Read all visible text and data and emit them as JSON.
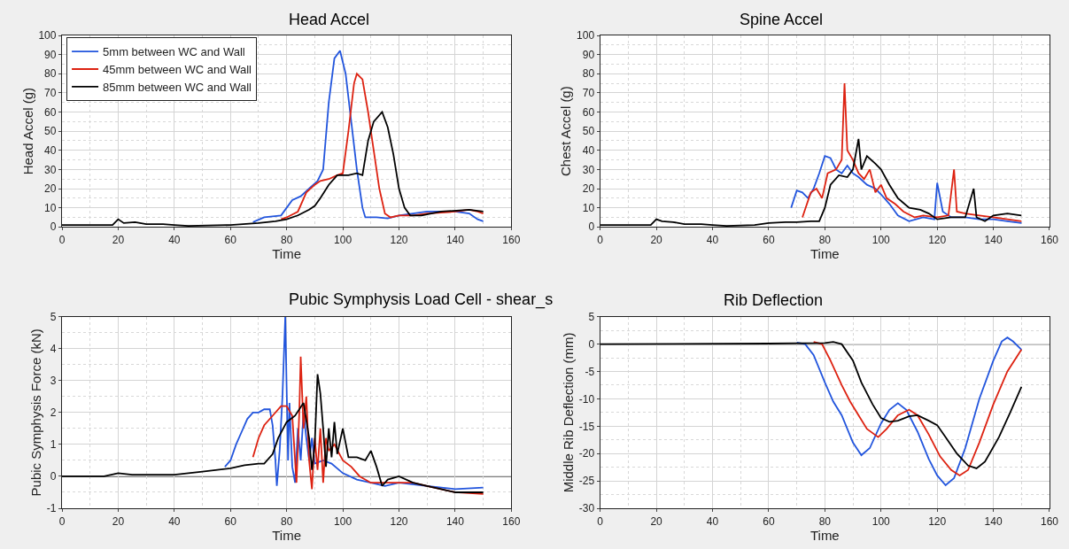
{
  "chart_data": [
    {
      "type": "line",
      "title": "Head Accel",
      "xlabel": "Time",
      "ylabel": "Head Accel (g)",
      "xlim": [
        0,
        160
      ],
      "xticks": [
        0,
        20,
        40,
        60,
        80,
        100,
        120,
        140,
        160
      ],
      "ylim": [
        0,
        100
      ],
      "yticks": [
        0,
        10,
        20,
        30,
        40,
        50,
        60,
        70,
        80,
        90,
        100
      ],
      "grid": true,
      "legend": "top left",
      "marker": "none",
      "line_style": "solid",
      "series": [
        {
          "name": "5mm between WC and Wall",
          "color": "#2255dd",
          "x": [
            68,
            72,
            78,
            80,
            82,
            85,
            88,
            91,
            93,
            95,
            97,
            99,
            101,
            103,
            105,
            107,
            108,
            112,
            116,
            120,
            130,
            140,
            145,
            148,
            150
          ],
          "values": [
            2.5,
            5,
            6,
            10,
            14,
            16,
            20,
            24,
            30,
            65,
            88,
            92,
            80,
            55,
            30,
            10,
            5,
            5,
            4.5,
            6,
            8,
            8,
            7,
            4,
            3
          ]
        },
        {
          "name": "45mm between WC and Wall",
          "color": "#dd2211",
          "x": [
            78,
            80,
            84,
            87,
            90,
            92,
            95,
            98,
            100,
            102,
            104,
            105,
            107,
            109,
            111,
            113,
            115,
            117,
            120,
            125,
            130,
            140,
            145,
            148,
            150
          ],
          "values": [
            4,
            5,
            8,
            18,
            22,
            24,
            25,
            27,
            28,
            50,
            75,
            80,
            77,
            60,
            40,
            20,
            7,
            5,
            6,
            6,
            7,
            8,
            9,
            8,
            7
          ]
        },
        {
          "name": "85mm between WC and Wall",
          "color": "#000000",
          "x": [
            0,
            18,
            20,
            22,
            26,
            30,
            36,
            40,
            45,
            60,
            70,
            76,
            80,
            84,
            88,
            90,
            92,
            95,
            98,
            102,
            105,
            107,
            109,
            111,
            114,
            116,
            118,
            120,
            122,
            124,
            128,
            135,
            145,
            150
          ],
          "values": [
            1,
            1,
            4,
            2,
            2.5,
            1.5,
            1.5,
            1,
            0.5,
            1,
            2,
            3,
            4,
            6,
            9,
            11,
            15,
            22,
            27,
            27,
            28,
            27,
            45,
            55,
            60,
            52,
            38,
            20,
            10,
            6,
            6,
            8,
            9,
            8
          ]
        }
      ]
    },
    {
      "type": "line",
      "title": "Spine Accel",
      "xlabel": "Time",
      "ylabel": "Chest Accel (g)",
      "xlim": [
        0,
        160
      ],
      "xticks": [
        0,
        20,
        40,
        60,
        80,
        100,
        120,
        140,
        160
      ],
      "ylim": [
        0,
        100
      ],
      "yticks": [
        0,
        10,
        20,
        30,
        40,
        50,
        60,
        70,
        80,
        90,
        100
      ],
      "grid": true,
      "marker": "none",
      "line_style": "solid",
      "series": [
        {
          "color": "#2255dd",
          "x": [
            68,
            70,
            72,
            74,
            76,
            78,
            80,
            82,
            84,
            86,
            88,
            90,
            92,
            95,
            98,
            100,
            103,
            106,
            110,
            115,
            119,
            120,
            122,
            125,
            130,
            135,
            140,
            145,
            150
          ],
          "values": [
            10,
            19,
            18,
            15,
            20,
            28,
            37,
            36,
            30,
            28,
            32,
            28,
            26,
            22,
            20,
            17,
            12,
            6,
            3,
            5,
            4,
            23,
            8,
            5,
            5,
            4,
            4,
            3,
            2
          ]
        },
        {
          "color": "#dd2211",
          "x": [
            72,
            75,
            77,
            79,
            81,
            84,
            86,
            87,
            88,
            90,
            92,
            94,
            96,
            98,
            100,
            102,
            105,
            108,
            112,
            115,
            120,
            124,
            126,
            127,
            130,
            135,
            140,
            145,
            150
          ],
          "values": [
            5,
            18,
            20,
            15,
            28,
            30,
            35,
            75,
            40,
            35,
            28,
            25,
            30,
            18,
            22,
            15,
            12,
            8,
            5,
            6,
            5,
            6,
            30,
            8,
            7,
            6,
            5,
            4,
            3
          ]
        },
        {
          "color": "#000000",
          "x": [
            0,
            18,
            20,
            22,
            26,
            30,
            36,
            40,
            45,
            55,
            60,
            66,
            70,
            75,
            78,
            80,
            82,
            85,
            88,
            90,
            92,
            93,
            95,
            98,
            100,
            103,
            106,
            110,
            114,
            117,
            120,
            125,
            130,
            133,
            134,
            137,
            140,
            145,
            150
          ],
          "values": [
            1,
            1,
            4,
            3,
            2.5,
            1.5,
            1.5,
            1,
            0.5,
            1,
            2,
            2.5,
            2.5,
            3,
            3,
            10,
            22,
            27,
            26,
            30,
            46,
            30,
            37,
            33,
            30,
            22,
            15,
            10,
            9,
            7,
            4,
            5,
            5,
            20,
            5,
            3,
            6,
            7,
            6
          ]
        }
      ]
    },
    {
      "type": "line",
      "title": "Pubic Symphysis Load Cell - shear_s",
      "xlabel": "Time",
      "ylabel": "Pubic Symphysis Force (kN)",
      "xlim": [
        0,
        160
      ],
      "xticks": [
        0,
        20,
        40,
        60,
        80,
        100,
        120,
        140,
        160
      ],
      "ylim": [
        -1,
        5
      ],
      "yticks": [
        -1,
        0,
        1,
        2,
        3,
        4,
        5
      ],
      "grid": true,
      "marker": "none",
      "line_style": "solid",
      "ref_lines": [
        {
          "axis": "y",
          "value": 0,
          "color": "#000000"
        }
      ],
      "series": [
        {
          "color": "#2255dd",
          "x": [
            58,
            60,
            62,
            64,
            66,
            68,
            70,
            72,
            74,
            75,
            76,
            76.5,
            77.5,
            78.5,
            79.5,
            80.5,
            81,
            82,
            83,
            84,
            85,
            86,
            87,
            88,
            89,
            90,
            93,
            96,
            100,
            105,
            110,
            115,
            120,
            130,
            140,
            150
          ],
          "values": [
            0.3,
            0.5,
            1,
            1.4,
            1.8,
            2.0,
            2.0,
            2.1,
            2.1,
            1.6,
            0.5,
            -0.3,
            0.8,
            2.5,
            5.0,
            0.5,
            2.3,
            0.3,
            -0.2,
            1.5,
            0.5,
            2.0,
            1.2,
            0.5,
            1.2,
            0.4,
            0.5,
            0.4,
            0.1,
            -0.1,
            -0.2,
            -0.3,
            -0.2,
            -0.3,
            -0.4,
            -0.35
          ]
        },
        {
          "color": "#dd2211",
          "x": [
            68,
            70,
            72,
            75,
            78,
            80,
            82,
            83,
            83.5,
            84.5,
            85,
            86,
            87,
            88,
            89,
            90,
            91,
            92,
            93,
            94,
            95,
            97,
            100,
            103,
            106,
            110,
            115,
            120,
            125,
            130,
            140,
            150
          ],
          "values": [
            0.6,
            1.2,
            1.6,
            1.9,
            2.2,
            2.2,
            1.9,
            0.5,
            -0.2,
            2.0,
            3.75,
            1.5,
            2.5,
            0.5,
            -0.4,
            1.2,
            0.2,
            1.5,
            -0.2,
            1.2,
            0.8,
            1.0,
            0.5,
            0.3,
            0.0,
            -0.2,
            -0.2,
            -0.2,
            -0.2,
            -0.3,
            -0.5,
            -0.55
          ]
        },
        {
          "color": "#000000",
          "x": [
            0,
            15,
            20,
            25,
            30,
            40,
            50,
            60,
            65,
            70,
            72,
            75,
            77,
            80,
            83,
            86,
            88,
            89,
            90,
            91,
            92,
            93,
            94,
            95,
            96,
            97,
            98,
            100,
            102,
            105,
            108,
            110,
            112,
            114,
            116,
            120,
            125,
            130,
            135,
            140,
            150
          ],
          "values": [
            0,
            0,
            0.1,
            0.05,
            0.05,
            0.05,
            0.15,
            0.25,
            0.35,
            0.4,
            0.4,
            0.7,
            1.2,
            1.7,
            1.9,
            2.3,
            1.2,
            0.2,
            1.0,
            3.2,
            2.6,
            1.5,
            0.3,
            1.5,
            0.6,
            1.7,
            0.7,
            1.5,
            0.6,
            0.6,
            0.5,
            0.8,
            0.3,
            -0.3,
            -0.1,
            0.0,
            -0.2,
            -0.3,
            -0.4,
            -0.5,
            -0.5
          ]
        }
      ]
    },
    {
      "type": "line",
      "title": "Rib Deflection",
      "xlabel": "Time",
      "ylabel": "Middle Rib Deflection (mm)",
      "xlim": [
        0,
        160
      ],
      "xticks": [
        0,
        20,
        40,
        60,
        80,
        100,
        120,
        140,
        160
      ],
      "ylim": [
        -30,
        5
      ],
      "yticks": [
        -30,
        -25,
        -20,
        -15,
        -10,
        -5,
        0,
        5
      ],
      "grid": true,
      "marker": "none",
      "line_style": "solid",
      "ref_lines": [
        {
          "axis": "y",
          "value": 0,
          "color": "#000000"
        }
      ],
      "series": [
        {
          "color": "#2255dd",
          "x": [
            70,
            73,
            76,
            80,
            83,
            86,
            90,
            93,
            96,
            100,
            103,
            106,
            109,
            113,
            117,
            120,
            123,
            126,
            130,
            135,
            140,
            143,
            145,
            147,
            150
          ],
          "values": [
            0.3,
            0,
            -2,
            -7,
            -10.5,
            -13,
            -18,
            -20.3,
            -19,
            -14.5,
            -12,
            -10.8,
            -12,
            -16,
            -21,
            -24,
            -25.8,
            -24.5,
            -19,
            -10,
            -3,
            0.5,
            1.2,
            0.5,
            -1
          ]
        },
        {
          "color": "#dd2211",
          "x": [
            76,
            79,
            82,
            86,
            89,
            92,
            95,
            99,
            102,
            106,
            110,
            113,
            117,
            121,
            125,
            128,
            131,
            135,
            140,
            145,
            150
          ],
          "values": [
            0.4,
            0,
            -3,
            -7.5,
            -10.5,
            -13,
            -15.5,
            -17,
            -15.5,
            -13,
            -12,
            -13,
            -16.5,
            -20.5,
            -23,
            -24,
            -23,
            -18,
            -11,
            -5,
            -1
          ]
        },
        {
          "color": "#000000",
          "x": [
            0,
            60,
            80,
            83,
            86,
            90,
            93,
            97,
            100,
            103,
            106,
            110,
            113,
            117,
            120,
            123,
            127,
            131,
            134,
            137,
            142,
            146,
            150
          ],
          "values": [
            0,
            0.1,
            0.2,
            0.4,
            0,
            -3,
            -7,
            -11,
            -13.5,
            -14.2,
            -14,
            -13.2,
            -13,
            -14,
            -14.8,
            -17,
            -20,
            -22.2,
            -22.7,
            -21.5,
            -17,
            -12.5,
            -7.8
          ]
        }
      ]
    }
  ]
}
